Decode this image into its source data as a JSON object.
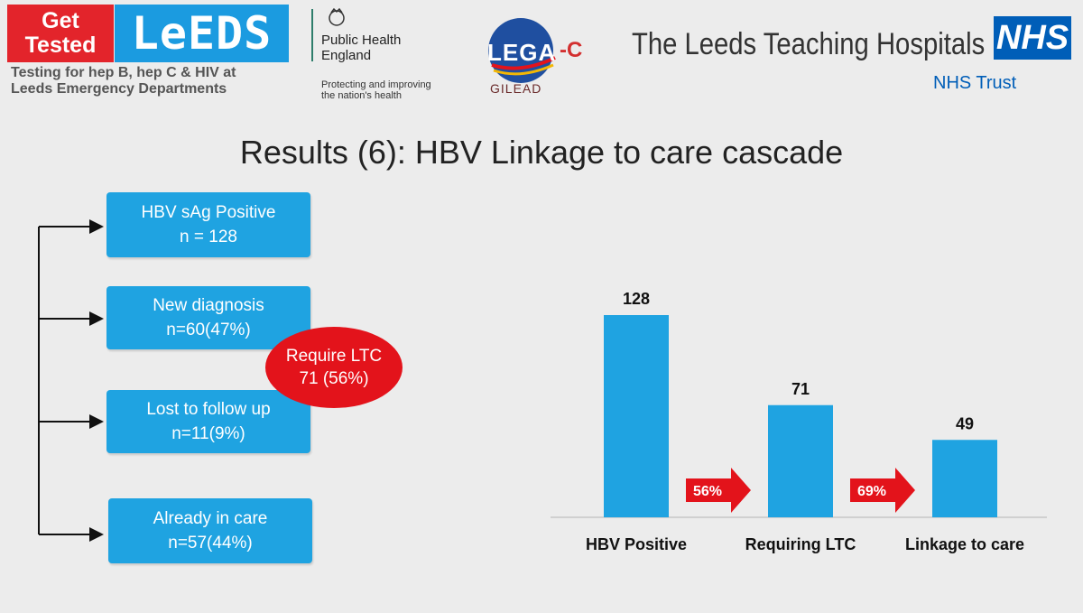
{
  "header": {
    "get_tested": [
      "Get",
      "Tested"
    ],
    "leeds": "LeEDS",
    "leeds_subtitle": [
      "Testing for hep B, hep C & HIV at",
      "Leeds Emergency Departments"
    ],
    "phe_name": [
      "Public Health",
      "England"
    ],
    "phe_tagline": [
      "Protecting and improving",
      "the nation's health"
    ],
    "lega": "LEGA",
    "lega_suffix": "-C",
    "gilead": "GILEAD",
    "hospital": "The Leeds Teaching Hospitals",
    "nhs": "NHS",
    "trust": "NHS Trust"
  },
  "title": "Results (6): HBV Linkage to care cascade",
  "flow": {
    "boxes": [
      {
        "line1": "HBV sAg Positive",
        "line2": "n = 128"
      },
      {
        "line1": "New diagnosis",
        "line2": "n=60(47%)"
      },
      {
        "line1": "Lost to follow up",
        "line2": "n=11(9%)"
      },
      {
        "line1": "Already in care",
        "line2": "n=57(44%)"
      }
    ],
    "oval": {
      "line1": "Require LTC",
      "line2": "71 (56%)"
    }
  },
  "colors": {
    "bar": "#1fa3e1",
    "red": "#e3131b",
    "nhs": "#005eb8"
  },
  "chart_data": {
    "type": "bar",
    "categories": [
      "HBV Positive",
      "Requiring LTC",
      "Linkage to care"
    ],
    "values": [
      128,
      71,
      49
    ],
    "data_labels": [
      "128",
      "71",
      "49"
    ],
    "arrows": [
      "56%",
      "69%"
    ],
    "ylim": [
      0,
      140
    ],
    "grid": false
  }
}
